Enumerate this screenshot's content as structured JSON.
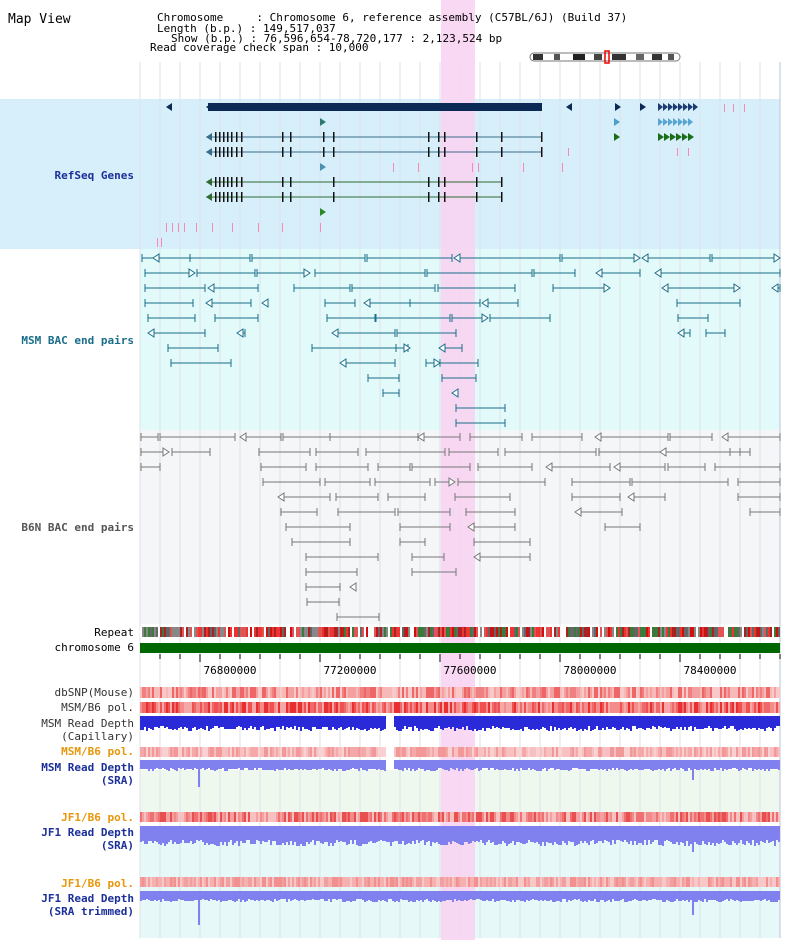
{
  "header": {
    "title": "Map View",
    "chromosome_line": "Chromosome     : Chromosome 6, reference assembly (C57BL/6J) (Build 37)",
    "length_line": "Length (b.p.) : 149,517,037",
    "show_line": "Show (b.p.) : 76,596,654-78,720,177 : 2,123,524 bp",
    "coverage_line": "Read coverage check span : 10,000"
  },
  "tracks": {
    "refseq": "RefSeq Genes",
    "msm_bac": "MSM BAC end pairs",
    "b6n_bac": "B6N BAC end pairs",
    "repeat": "Repeat",
    "chromosome": "chromosome 6",
    "dbsnp": "dbSNP(Mouse)",
    "msm_b6_pol": "MSM/B6 pol.",
    "msm_read_depth_cap_1": "MSM Read Depth",
    "msm_read_depth_cap_2": "(Capillary)",
    "msm_b6_pol2": "MSM/B6 pol.",
    "msm_read_depth_sra_1": "MSM Read Depth",
    "msm_read_depth_sra_2": "(SRA)",
    "jf1_b6_pol": "JF1/B6 pol.",
    "jf1_read_depth_sra_1": "JF1 Read Depth",
    "jf1_read_depth_sra_2": "(SRA)",
    "jf1_b6_pol2": "JF1/B6 pol.",
    "jf1_read_depth_trim_1": "JF1 Read Depth",
    "jf1_read_depth_trim_2": "(SRA trimmed)"
  },
  "axis": {
    "range": [
      76596654,
      78720177
    ],
    "ticks": [
      {
        "value": 76800000,
        "label": "76800000"
      },
      {
        "value": 77200000,
        "label": "77200000"
      },
      {
        "value": 77600000,
        "label": "77600000"
      },
      {
        "value": 78000000,
        "label": "78000000"
      },
      {
        "value": 78400000,
        "label": "78400000"
      }
    ]
  },
  "highlight_range": [
    77600000,
    77720000
  ],
  "colors": {
    "refseq_bg": "#d6effa",
    "msm_bg": "#e3fafa",
    "b6n_bg": "#f4f6f8",
    "highlight": "#f8d4f2",
    "refseq_gene": "#0a2a55",
    "msm_pair": "#1a6e8a",
    "b6n_pair": "#777777",
    "chromosome_bar": "#006600",
    "depth_capillary": "#2a2ad8",
    "depth_sra": "#8080ee",
    "pol_label": "#e8960a",
    "track_label": "#1a2f9a"
  }
}
